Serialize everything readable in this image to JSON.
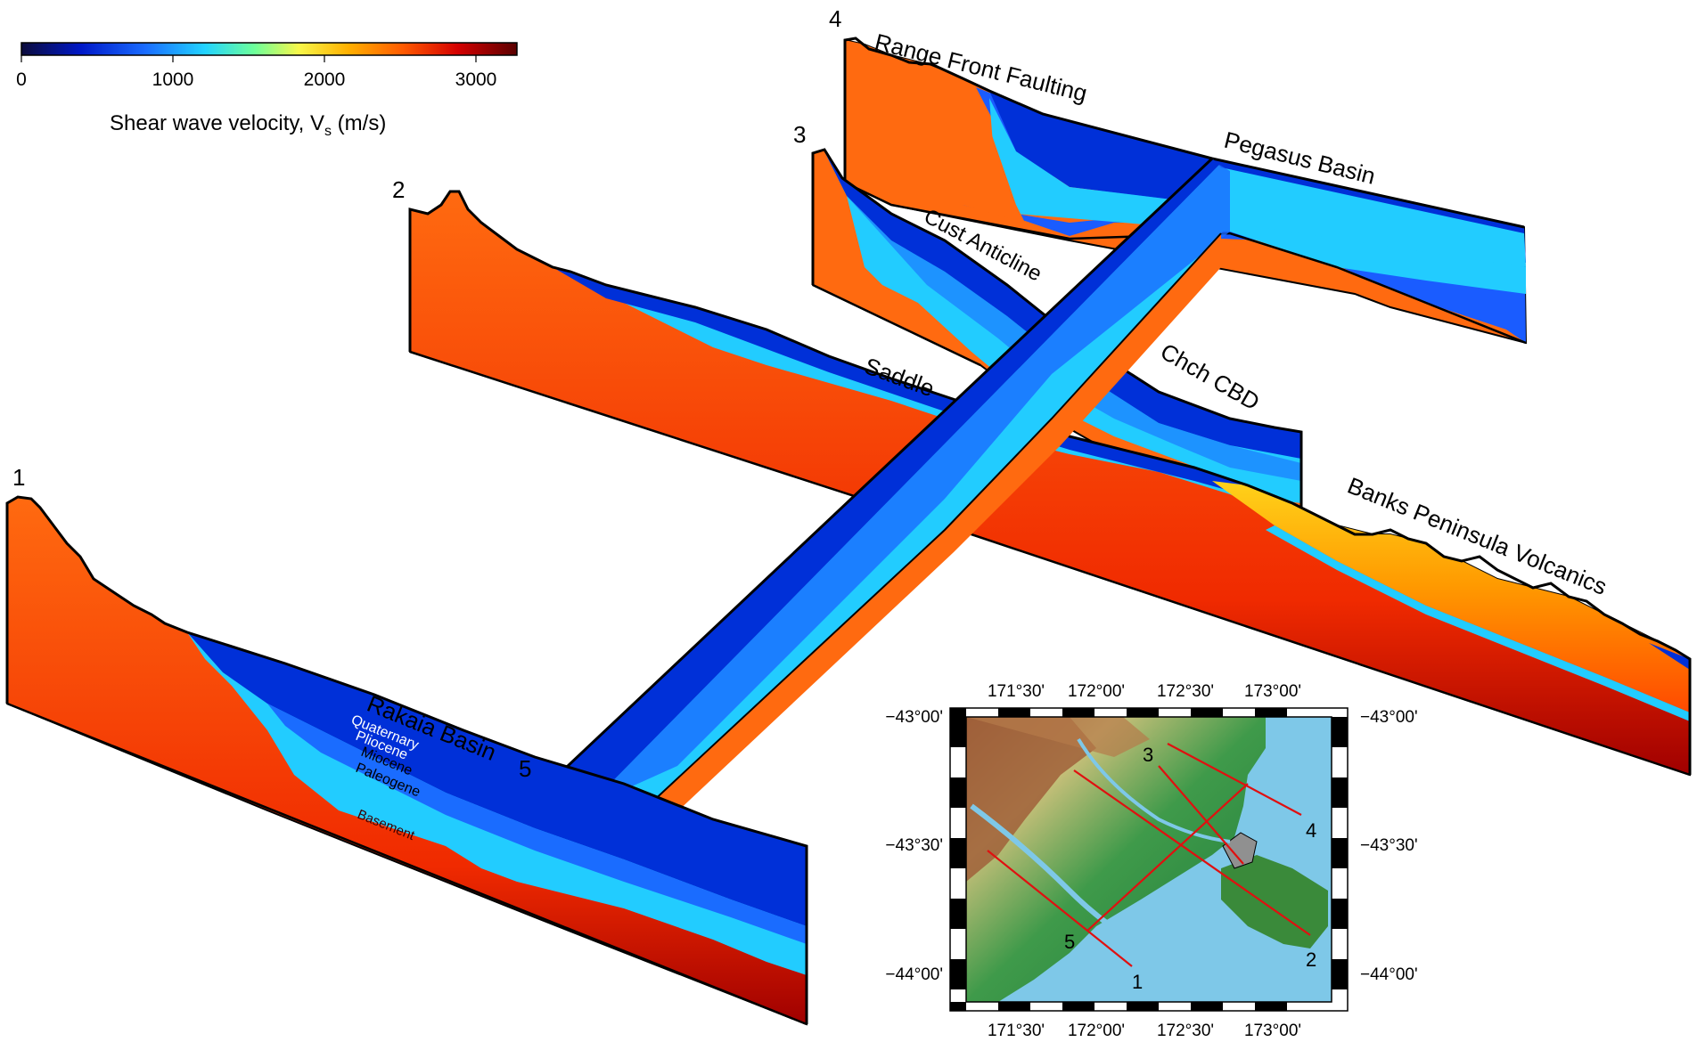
{
  "colorbar": {
    "ticks": [
      "0",
      "1000",
      "2000",
      "3000"
    ],
    "title": "Shear wave velocity, V",
    "title_sub": "s",
    "title_unit": " (m/s)",
    "colors": [
      "#0b0b3b",
      "#0018c8",
      "#1a6cff",
      "#22d3ff",
      "#6dff9a",
      "#f7f74a",
      "#ffb000",
      "#ff5a00",
      "#d40000",
      "#5a0000"
    ]
  },
  "profiles": {
    "p1": "1",
    "p2": "2",
    "p3": "3",
    "p4": "4",
    "p5": "5"
  },
  "features": {
    "range_front": "Range Front Faulting",
    "pegasus": "Pegasus Basin",
    "cust": "Cust Anticline",
    "chch": "Chch CBD",
    "saddle": "Saddle",
    "banks": "Banks Peninsula Volcanics",
    "rakaia": "Rakaia Basin"
  },
  "layers": {
    "quaternary": "Quaternary",
    "pliocene": "Pliocene",
    "miocene": "Miocene",
    "paleogene": "Paleogene",
    "basement": "Basement"
  },
  "map": {
    "lon_ticks": [
      "171°30'",
      "172°00'",
      "172°30'",
      "173°00'"
    ],
    "lat_ticks": [
      "−43°00'",
      "−43°30'",
      "−44°00'"
    ],
    "line_labels": [
      "1",
      "2",
      "3",
      "4",
      "5"
    ]
  }
}
